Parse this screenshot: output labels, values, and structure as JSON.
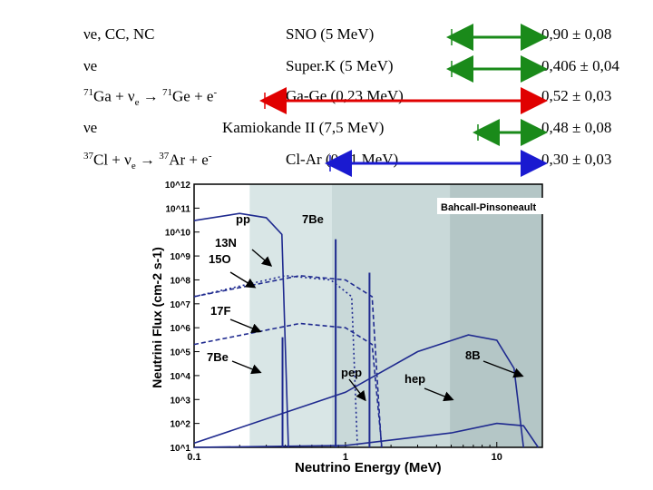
{
  "rows": [
    {
      "label": "νe, CC, NC",
      "detector": "SNO (5 MeV)",
      "ratio": "0,90 ± 0,08"
    },
    {
      "label": "νe",
      "detector": "Super.K (5 MeV)",
      "ratio": "0,406 ± 0,04"
    },
    {
      "reaction": {
        "a": "71",
        "b": "Ga + ν",
        "c": "e",
        "d": "71",
        "e": "Ge + e",
        "f": "-"
      },
      "detector": "Ga-Ge (0,23 MeV)",
      "ratio": "0,52 ± 0,03"
    },
    {
      "label": "νe",
      "detector": "Kamiokande II (7,5 MeV)",
      "ratio": "0,48 ± 0,08"
    },
    {
      "reaction": {
        "a": "37",
        "b": "Cl + ν",
        "c": "e",
        "d": "37",
        "e": "Ar + e",
        "f": "-"
      },
      "detector": "Cl-Ar (0,81 MeV)",
      "ratio": "0,30 ± 0,03"
    }
  ],
  "colors": {
    "green": "#1a8a1a",
    "red": "#e00000",
    "blue": "#1a1ad0",
    "curve": "#1f2a8f"
  },
  "chart_data": {
    "type": "line",
    "title": "Bahcall-Pinsoneault",
    "xlabel": "Neutrino Energy (MeV)",
    "ylabel": "Neutrini Flux (cm-2 s-1)",
    "xscale": "log",
    "yscale": "log",
    "xlim": [
      0.1,
      20
    ],
    "ylim": [
      10,
      1000000000000
    ],
    "x_tick_labels": [
      "0.1",
      "1",
      "10"
    ],
    "y_tick_labels": [
      "10^1",
      "10^2",
      "10^3",
      "10^4",
      "10^5",
      "10^6",
      "10^7",
      "10^8",
      "10^9",
      "10^10",
      "10^11",
      "10^12"
    ],
    "series_labels": [
      "pp",
      "7Be",
      "13N",
      "15O",
      "17F",
      "7Be",
      "pep",
      "hep",
      "8B"
    ],
    "series": [
      {
        "name": "pp",
        "style": "solid",
        "x": [
          0.1,
          0.2,
          0.3,
          0.38,
          0.42
        ],
        "y": [
          30000000000,
          60000000000,
          40000000000,
          8000000000,
          10
        ]
      },
      {
        "name": "13N",
        "style": "dotted",
        "x": [
          0.1,
          0.4,
          0.8,
          1.1,
          1.2
        ],
        "y": [
          20000000,
          150000000,
          100000000,
          20000000,
          10
        ]
      },
      {
        "name": "15O",
        "style": "dashed",
        "x": [
          0.1,
          0.5,
          1.0,
          1.5,
          1.73
        ],
        "y": [
          20000000,
          150000000,
          100000000,
          20000000,
          10
        ]
      },
      {
        "name": "17F",
        "style": "dashed",
        "x": [
          0.1,
          0.5,
          1.0,
          1.5,
          1.74
        ],
        "y": [
          200000,
          1500000,
          1000000,
          200000,
          10
        ]
      },
      {
        "name": "8B",
        "style": "solid",
        "x": [
          0.1,
          1,
          3,
          6.5,
          10,
          13,
          15
        ],
        "y": [
          15,
          2000,
          100000,
          500000,
          300000,
          20000,
          10
        ]
      },
      {
        "name": "hep",
        "style": "solid",
        "x": [
          0.1,
          1,
          5,
          10,
          15,
          18.77
        ],
        "y": [
          10,
          12,
          40,
          100,
          80,
          10
        ]
      }
    ],
    "lines": [
      {
        "name": "7Be",
        "energy": 0.384,
        "flux": 400000
      },
      {
        "name": "7Be",
        "energy": 0.862,
        "flux": 5000000000
      },
      {
        "name": "pep",
        "energy": 1.442,
        "flux": 200000000
      }
    ],
    "shaded_regions": [
      {
        "from": 0.233,
        "to": 0.2,
        "note": "Ga"
      },
      {
        "from": 0.233,
        "to": 20
      },
      {
        "from": 0.814,
        "to": 20
      },
      {
        "from": 4.9,
        "to": 20
      }
    ]
  }
}
